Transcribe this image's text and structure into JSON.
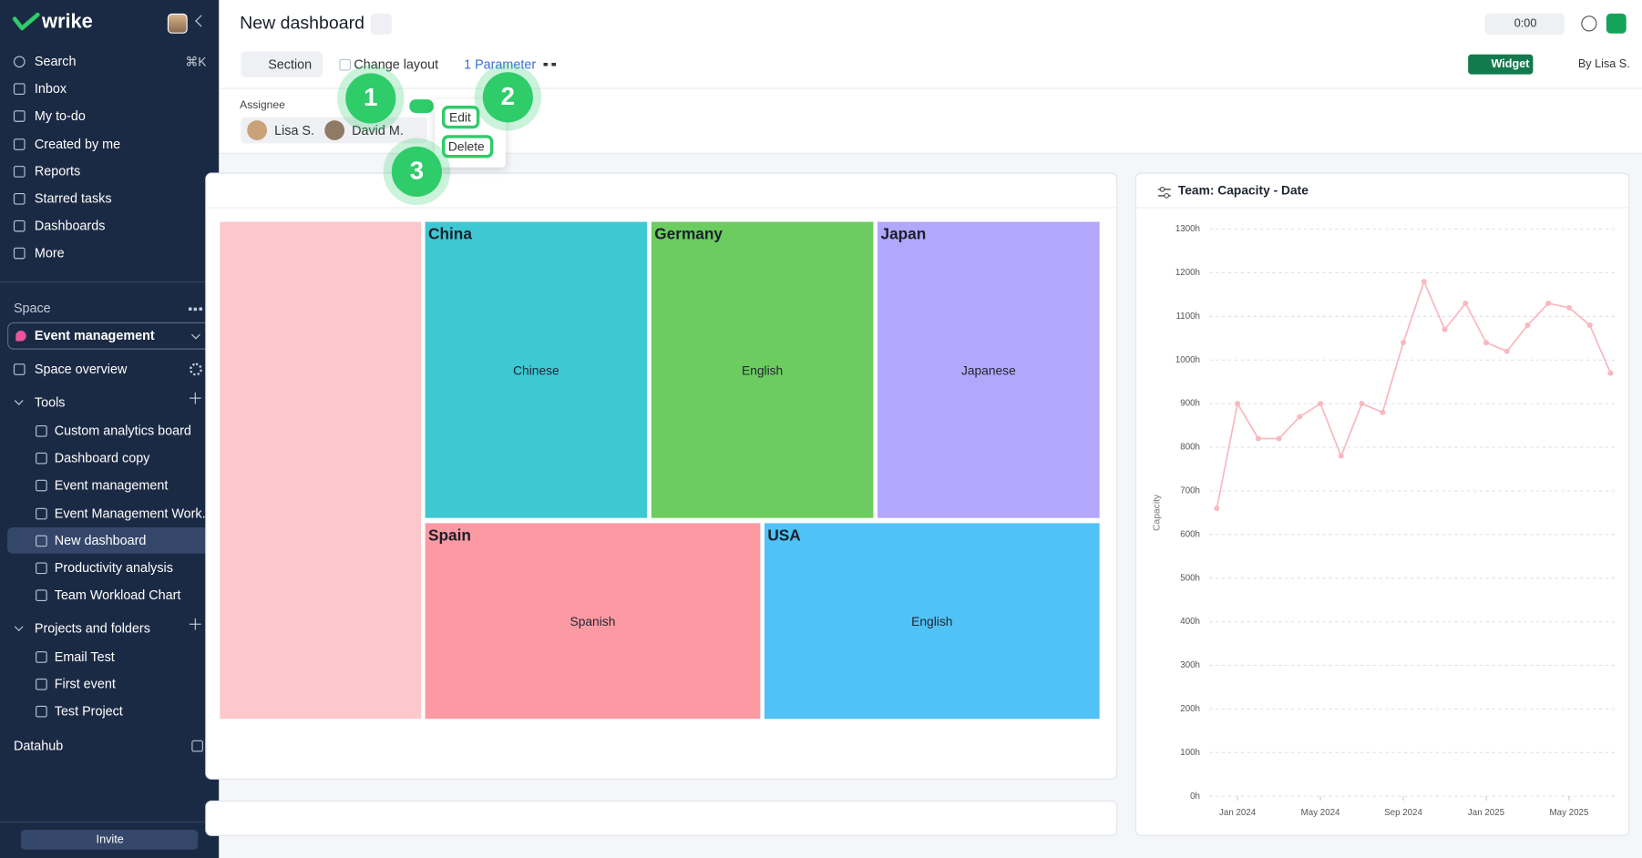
{
  "sidebar": {
    "brand": "wrike",
    "search_shortcut": "⌘K",
    "nav": [
      "Search",
      "Inbox",
      "My to-do",
      "Created by me",
      "Reports",
      "Starred tasks",
      "Dashboards",
      "More"
    ],
    "space_label": "Space",
    "space_name": "Event management",
    "space_overview": "Space overview",
    "tools_label": "Tools",
    "tools": [
      "Custom analytics board",
      "Dashboard copy",
      "Event management",
      "Event Management Work...",
      "New dashboard",
      "Productivity analysis",
      "Team Workload Chart"
    ],
    "projects_label": "Projects and folders",
    "projects": [
      "Email Test",
      "First event",
      "Test Project"
    ],
    "datahub": "Datahub",
    "invite": "Invite"
  },
  "header": {
    "title": "New dashboard",
    "timer": "0:00",
    "section": "Section",
    "change_layout": "Change layout",
    "parameter": "1 Parameter",
    "widget": "Widget",
    "owner": "By Lisa S."
  },
  "filter": {
    "label": "Assignee",
    "assignees": [
      "Lisa S.",
      "David M."
    ],
    "menu": [
      "Edit",
      "Delete"
    ],
    "callouts": [
      "1",
      "2",
      "3"
    ]
  },
  "treemap": {
    "tiles": [
      {
        "title": "China",
        "label": "Chinese"
      },
      {
        "title": "Germany",
        "label": "English"
      },
      {
        "title": "Japan",
        "label": "Japanese"
      },
      {
        "title": "Spain",
        "label": "Spanish"
      },
      {
        "title": "USA",
        "label": "English"
      }
    ]
  },
  "chart_data": {
    "type": "line",
    "title": "Team: Capacity - Date",
    "y_label": "Capacity",
    "categories": [
      null,
      "Jan 2024",
      null,
      null,
      null,
      "May 2024",
      null,
      null,
      null,
      "Sep 2024",
      null,
      null,
      null,
      "Jan 2025",
      null,
      null,
      null,
      "May 2025",
      null,
      null
    ],
    "series": [
      {
        "name": "Capacity",
        "color": "#f9b8bf",
        "values": [
          660,
          900,
          820,
          820,
          870,
          900,
          780,
          900,
          880,
          1040,
          1180,
          1070,
          1130,
          1040,
          1020,
          1080,
          1130,
          1120,
          1080,
          970
        ]
      }
    ],
    "ylim": [
      0,
      1300
    ],
    "yticks": [
      {
        "value": 0,
        "label": "0h"
      },
      {
        "value": 100,
        "label": "100h"
      },
      {
        "value": 200,
        "label": "200h"
      },
      {
        "value": 300,
        "label": "300h"
      },
      {
        "value": 400,
        "label": "400h"
      },
      {
        "value": 500,
        "label": "500h"
      },
      {
        "value": 600,
        "label": "600h"
      },
      {
        "value": 700,
        "label": "700h"
      },
      {
        "value": 800,
        "label": "800h"
      },
      {
        "value": 900,
        "label": "900h"
      },
      {
        "value": 1000,
        "label": "1000h"
      },
      {
        "value": 1100,
        "label": "1100h"
      },
      {
        "value": 1200,
        "label": "1200h"
      },
      {
        "value": 1300,
        "label": "1300h"
      }
    ],
    "grid": true
  }
}
